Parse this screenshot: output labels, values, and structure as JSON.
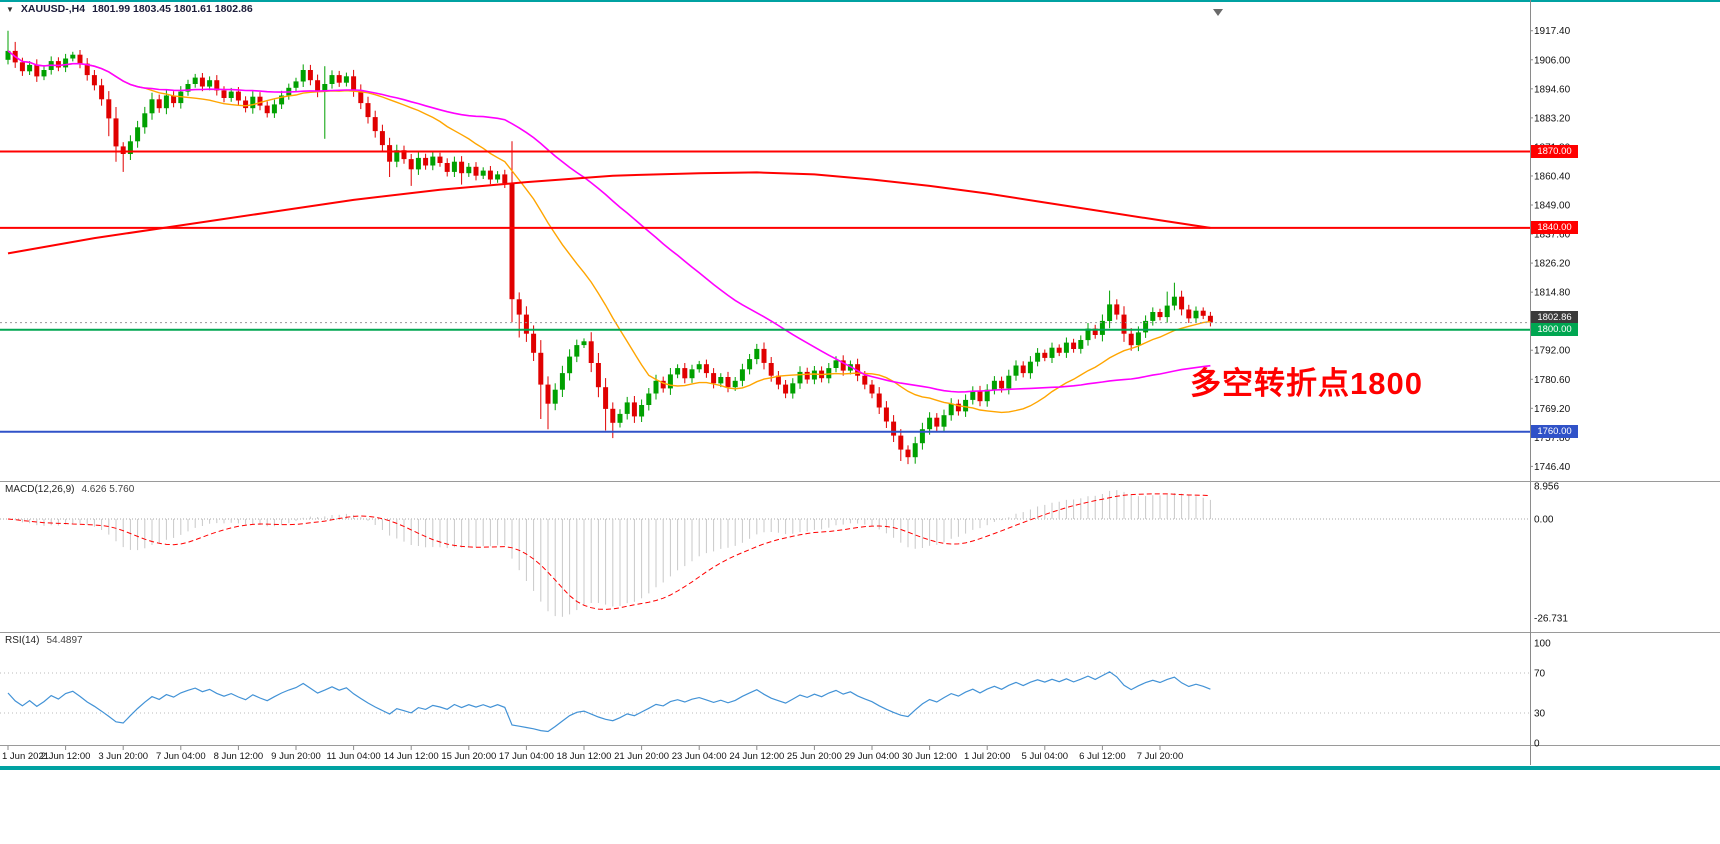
{
  "window": {
    "accent_color": "#00A2A2"
  },
  "icons": {
    "symbol_menu": "▼"
  },
  "title_bar": {
    "symbol_period": "XAUUSD-,H4",
    "ohlc": "1801.99 1803.45 1801.61 1802.86"
  },
  "annotation": {
    "text": "多空转折点1800",
    "color": "#FF0000"
  },
  "axis": {
    "price_ticks": [
      1917.4,
      1906.0,
      1894.6,
      1883.2,
      1871.8,
      1860.4,
      1849.0,
      1837.6,
      1826.2,
      1814.8,
      1803.4,
      1792.0,
      1780.6,
      1769.2,
      1757.8,
      1746.4
    ],
    "label_every": 8,
    "time_labels": [
      "1 Jun 2021",
      "2 Jun 12:00",
      "3 Jun 20:00",
      "7 Jun 04:00",
      "8 Jun 12:00",
      "9 Jun 20:00",
      "11 Jun 04:00",
      "14 Jun 12:00",
      "15 Jun 20:00",
      "17 Jun 04:00",
      "18 Jun 12:00",
      "21 Jun 20:00",
      "23 Jun 04:00",
      "24 Jun 12:00",
      "25 Jun 20:00",
      "29 Jun 04:00",
      "30 Jun 12:00",
      "1 Jul 20:00",
      "5 Jul 04:00",
      "6 Jul 12:00",
      "7 Jul 20:00"
    ]
  },
  "chart_data": [
    {
      "type": "candlestick",
      "symbol": "XAUUSD-",
      "timeframe": "H4",
      "ohlc_readout": {
        "open": 1801.99,
        "high": 1803.45,
        "low": 1801.61,
        "close": 1802.86
      },
      "ylim": [
        1744.2,
        1922.4
      ],
      "up_color": "#00A000",
      "down_color": "#E00000",
      "first_open": 1906.0,
      "closes": [
        1909.5,
        1905.0,
        1901.5,
        1904.0,
        1899.5,
        1902.0,
        1905.5,
        1903.0,
        1906.5,
        1908.0,
        1904.5,
        1900.0,
        1896.0,
        1890.5,
        1883.0,
        1872.0,
        1869.0,
        1874.0,
        1879.5,
        1885.0,
        1890.5,
        1887.0,
        1892.0,
        1889.0,
        1893.5,
        1896.5,
        1899.0,
        1895.5,
        1898.0,
        1894.0,
        1891.0,
        1893.5,
        1890.0,
        1887.0,
        1891.5,
        1888.0,
        1885.0,
        1888.5,
        1892.0,
        1895.0,
        1897.5,
        1902.0,
        1898.0,
        1893.5,
        1896.5,
        1900.0,
        1897.0,
        1899.5,
        1894.0,
        1889.0,
        1883.5,
        1878.0,
        1872.5,
        1866.0,
        1870.5,
        1867.0,
        1863.0,
        1867.5,
        1864.5,
        1868.0,
        1865.5,
        1862.0,
        1866.0,
        1861.5,
        1864.0,
        1860.5,
        1862.5,
        1859.0,
        1861.0,
        1857.5,
        1812.0,
        1806.0,
        1798.5,
        1791.0,
        1778.5,
        1771.0,
        1776.5,
        1783.0,
        1789.5,
        1794.0,
        1795.5,
        1787.0,
        1777.5,
        1769.0,
        1763.5,
        1767.0,
        1771.5,
        1766.0,
        1770.5,
        1775.0,
        1780.0,
        1777.0,
        1782.5,
        1785.0,
        1781.0,
        1784.5,
        1786.5,
        1783.0,
        1779.0,
        1781.5,
        1777.5,
        1780.0,
        1784.5,
        1788.5,
        1792.5,
        1787.0,
        1782.0,
        1778.5,
        1775.0,
        1779.0,
        1783.5,
        1780.5,
        1784.0,
        1781.0,
        1785.0,
        1788.0,
        1784.0,
        1786.5,
        1782.0,
        1778.5,
        1775.0,
        1769.5,
        1764.0,
        1758.5,
        1753.0,
        1750.0,
        1755.5,
        1761.0,
        1765.5,
        1762.0,
        1766.5,
        1771.0,
        1768.0,
        1772.5,
        1776.0,
        1772.0,
        1776.5,
        1780.0,
        1777.0,
        1782.0,
        1786.0,
        1783.0,
        1787.5,
        1791.0,
        1789.0,
        1793.0,
        1791.0,
        1795.0,
        1792.5,
        1796.0,
        1800.5,
        1798.0,
        1803.5,
        1810.0,
        1806.0,
        1798.5,
        1794.0,
        1799.0,
        1803.5,
        1807.0,
        1805.0,
        1809.5,
        1813.0,
        1808.0,
        1804.5,
        1807.5,
        1805.5,
        1802.86
      ],
      "wick_overrides": {
        "0": {
          "h": 1917.4
        },
        "1": {
          "h": 1913.0
        },
        "14": {
          "l": 1876.0
        },
        "15": {
          "l": 1866.0
        },
        "16": {
          "l": 1862.0
        },
        "44": {
          "h": 1903.5,
          "l": 1875.0
        },
        "53": {
          "l": 1860.0
        },
        "56": {
          "l": 1856.5
        },
        "63": {
          "l": 1857.0
        },
        "70": {
          "l": 1803.0
        },
        "71": {
          "l": 1797.0
        },
        "74": {
          "l": 1765.0
        },
        "75": {
          "l": 1761.0
        },
        "83": {
          "l": 1760.5
        },
        "84": {
          "l": 1757.5
        },
        "124": {
          "l": 1748.5
        },
        "125": {
          "l": 1747.3
        },
        "153": {
          "h": 1815.4
        },
        "161": {
          "h": 1815.0
        },
        "162": {
          "h": 1818.5
        }
      },
      "overlays": {
        "ma_fast_color": "#FFA500",
        "ma_fast_period": 20,
        "ma_mid_color": "#FF00FF",
        "ma_mid_period": 50,
        "ma_slow": {
          "color": "#FF0000",
          "points": [
            [
              0,
              1830
            ],
            [
              12,
              1836
            ],
            [
              24,
              1841
            ],
            [
              36,
              1846
            ],
            [
              48,
              1851
            ],
            [
              60,
              1855
            ],
            [
              72,
              1858
            ],
            [
              84,
              1860.5
            ],
            [
              96,
              1861.5
            ],
            [
              104,
              1861.8
            ],
            [
              112,
              1861
            ],
            [
              120,
              1859
            ],
            [
              128,
              1856.5
            ],
            [
              136,
              1853.5
            ],
            [
              144,
              1850
            ],
            [
              152,
              1846.5
            ],
            [
              160,
              1843
            ],
            [
              167,
              1840
            ]
          ]
        }
      },
      "hlines": [
        {
          "price": 1870.0,
          "label": "1870.00",
          "color": "#FF0000",
          "width": 2
        },
        {
          "price": 1840.0,
          "label": "1840.00",
          "color": "#FF0000",
          "width": 2
        },
        {
          "price": 1802.86,
          "label": "1802.86",
          "color": "#9a9a9a",
          "badge_color": "#3b3b3b",
          "width": 1,
          "style": "dotted",
          "dy": -5
        },
        {
          "price": 1800.0,
          "label": "1800.00",
          "color": "#00A651",
          "width": 2
        },
        {
          "price": 1760.0,
          "label": "1760.00",
          "color": "#3052C8",
          "width": 2
        }
      ]
    },
    {
      "type": "macd",
      "label": "MACD(12,26,9)",
      "params": [
        12,
        26,
        9
      ],
      "values": [
        4.626,
        5.76
      ],
      "values_text": "4.626 5.760",
      "histogram_color": "#C8C8C8",
      "signal_color": "#FF0000",
      "ticks": [
        {
          "label": "8.956",
          "value": 8.956
        },
        {
          "label": "0.00",
          "value": 0
        },
        {
          "label": "-26.731",
          "value": -26.731
        }
      ],
      "derived_from": "closes of pane 0 (EMA12-EMA26, SMA9 signal)"
    },
    {
      "type": "rsi",
      "label": "RSI(14)",
      "period": 14,
      "value": 54.4897,
      "value_text": "54.4897",
      "color": "#4292D6",
      "levels": [
        70,
        30
      ],
      "ticks": [
        100,
        70,
        30,
        0
      ],
      "ylim": [
        0,
        100
      ]
    }
  ]
}
